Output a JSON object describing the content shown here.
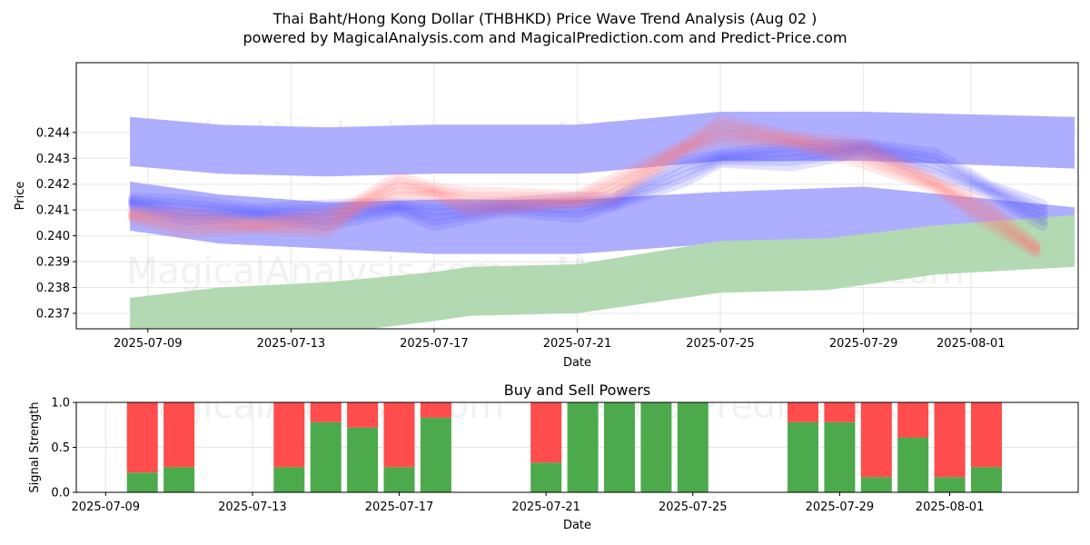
{
  "title_line1": "Thai Baht/Hong Kong Dollar (THBHKD) Price Wave Trend Analysis (Aug 02 )",
  "title_line2": "powered by MagicalAnalysis.com and MagicalPrediction.com and Predict-Price.com",
  "watermarks": [
    "MagicalAnalysis.com",
    "MagicalPrediction.com"
  ],
  "colors": {
    "upper_band": "#aaaaff",
    "lower_band": "#b3d9b3",
    "buy": "#4caa4c",
    "sell": "#ff4c4c",
    "blue_wave": "#5555ff",
    "red_wave": "#ff7777"
  },
  "chart_data": [
    {
      "type": "area",
      "title": "",
      "xlabel": "Date",
      "ylabel": "Price",
      "x_ticks": [
        "2025-07-09",
        "2025-07-13",
        "2025-07-17",
        "2025-07-21",
        "2025-07-25",
        "2025-07-29",
        "2025-08-01"
      ],
      "y_ticks": [
        "0.237",
        "0.238",
        "0.239",
        "0.240",
        "0.241",
        "0.242",
        "0.243",
        "0.244"
      ],
      "xlim": [
        "2025-07-07",
        "2025-08-04"
      ],
      "ylim": [
        0.2364,
        0.2467
      ],
      "grid": true,
      "series": [
        {
          "style": "band",
          "color": "upper_band",
          "x": [
            "2025-07-08.5",
            "2025-07-11",
            "2025-07-14",
            "2025-07-17",
            "2025-07-21",
            "2025-07-25",
            "2025-07-29",
            "2025-08-03.9"
          ],
          "upper": [
            0.2446,
            0.2443,
            0.2442,
            0.2443,
            0.2443,
            0.2448,
            0.2448,
            0.2446
          ],
          "lower": [
            0.2427,
            0.2424,
            0.2423,
            0.2424,
            0.2424,
            0.2429,
            0.2429,
            0.2426
          ]
        },
        {
          "style": "band",
          "color": "upper_band",
          "x": [
            "2025-07-08.5",
            "2025-07-11",
            "2025-07-14",
            "2025-07-17",
            "2025-07-21",
            "2025-07-25",
            "2025-07-29",
            "2025-08-03.9"
          ],
          "upper": [
            0.2421,
            0.2416,
            0.2413,
            0.2414,
            0.2414,
            0.2417,
            0.2419,
            0.2411
          ],
          "lower": [
            0.2402,
            0.2397,
            0.2395,
            0.2393,
            0.2393,
            0.2397,
            0.2399,
            0.2392
          ]
        },
        {
          "style": "band",
          "color": "lower_band",
          "x": [
            "2025-07-08.5",
            "2025-07-11",
            "2025-07-14",
            "2025-07-17",
            "2025-07-18",
            "2025-07-21",
            "2025-07-25",
            "2025-07-28",
            "2025-07-31",
            "2025-08-03.9"
          ],
          "upper": [
            0.2376,
            0.238,
            0.2382,
            0.2386,
            0.2388,
            0.2389,
            0.2398,
            0.2399,
            0.2404,
            0.2408
          ],
          "lower": [
            0.2362,
            0.2362,
            0.2362,
            0.2367,
            0.2369,
            0.237,
            0.2378,
            0.2379,
            0.2385,
            0.2388
          ]
        },
        {
          "style": "wave",
          "color": "blue_wave",
          "x": [
            "2025-07-08.6",
            "2025-07-10",
            "2025-07-12",
            "2025-07-14",
            "2025-07-16",
            "2025-07-17",
            "2025-07-19",
            "2025-07-21",
            "2025-07-22",
            "2025-07-24",
            "2025-07-25",
            "2025-07-27",
            "2025-07-29",
            "2025-07-31",
            "2025-08-01.5",
            "2025-08-03"
          ],
          "y": [
            0.2413,
            0.241,
            0.2409,
            0.2408,
            0.2411,
            0.2408,
            0.2411,
            0.2411,
            0.2413,
            0.2425,
            0.243,
            0.2431,
            0.2434,
            0.2428,
            0.2418,
            0.2408
          ]
        },
        {
          "style": "wave",
          "color": "red_wave",
          "x": [
            "2025-07-08.6",
            "2025-07-10",
            "2025-07-12",
            "2025-07-14",
            "2025-07-15",
            "2025-07-16",
            "2025-07-17",
            "2025-07-18",
            "2025-07-21",
            "2025-07-22",
            "2025-07-24",
            "2025-07-25",
            "2025-07-27",
            "2025-07-29",
            "2025-07-31",
            "2025-08-01.5",
            "2025-08-02.8"
          ],
          "y": [
            0.2408,
            0.2405,
            0.2404,
            0.2405,
            0.2413,
            0.2419,
            0.2417,
            0.2413,
            0.2414,
            0.2418,
            0.2434,
            0.2441,
            0.2437,
            0.2432,
            0.242,
            0.2408,
            0.2395
          ]
        }
      ]
    },
    {
      "type": "bar",
      "title": "Buy and Sell Powers",
      "xlabel": "Date",
      "ylabel": "Signal Strength",
      "x_ticks": [
        "2025-07-09",
        "2025-07-13",
        "2025-07-17",
        "2025-07-21",
        "2025-07-25",
        "2025-07-29",
        "2025-08-01"
      ],
      "y_ticks": [
        "0.0",
        "0.5",
        "1.0"
      ],
      "ylim": [
        0,
        1
      ],
      "grid": true,
      "categories": [
        "2025-07-10",
        "2025-07-11",
        "2025-07-14",
        "2025-07-15",
        "2025-07-16",
        "2025-07-17",
        "2025-07-18",
        "2025-07-21",
        "2025-07-22",
        "2025-07-23",
        "2025-07-24",
        "2025-07-25",
        "2025-07-28",
        "2025-07-29",
        "2025-07-30",
        "2025-07-31",
        "2025-08-01",
        "2025-08-02"
      ],
      "series": [
        {
          "name": "Buy",
          "color": "buy",
          "values": [
            0.22,
            0.28,
            0.28,
            0.78,
            0.72,
            0.28,
            0.83,
            0.33,
            1.0,
            1.0,
            1.0,
            1.0,
            0.78,
            0.78,
            0.17,
            0.61,
            0.17,
            0.28
          ]
        },
        {
          "name": "Sell",
          "color": "sell",
          "values": [
            0.78,
            0.72,
            0.72,
            0.22,
            0.28,
            0.72,
            0.17,
            0.67,
            0.0,
            0.0,
            0.0,
            0.0,
            0.22,
            0.22,
            0.83,
            0.39,
            0.83,
            0.72
          ]
        }
      ]
    }
  ]
}
